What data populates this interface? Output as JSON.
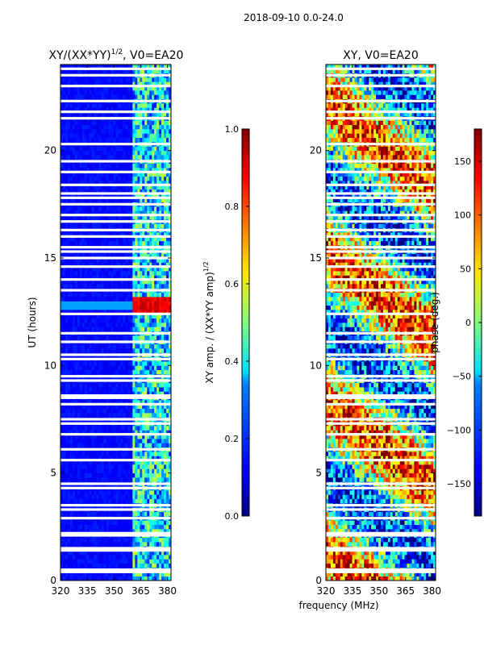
{
  "figure": {
    "suptitle": "2018-09-10 0.0-24.0",
    "xlabel": "frequency (MHz)",
    "background": "#ffffff"
  },
  "chart_data": [
    {
      "type": "heatmap",
      "title_main": "XY/(XX*YY)",
      "title_sup": "1/2",
      "title_tail": ", V0=EA20",
      "ylabel": "UT (hours)",
      "xlim": [
        320,
        382
      ],
      "ylim": [
        0,
        24
      ],
      "xticks": [
        320,
        335,
        350,
        365,
        380
      ],
      "yticks": [
        0,
        5,
        10,
        15,
        20
      ],
      "colorbar": {
        "label_main": "XY amp. / (XX*YY amp)",
        "label_sup": "1/2",
        "range": [
          0.0,
          1.0
        ],
        "ticks": [
          "0.0",
          "0.2",
          "0.4",
          "0.6",
          "0.8",
          "1.0"
        ],
        "colormap": "jet"
      },
      "description_values": {
        "background_level": 0.1,
        "band_start_mhz": 360,
        "band_level": 0.45,
        "peak_hours": [
          12.3,
          13.1
        ],
        "peak_level": 0.85
      },
      "gap_hours": [
        0.4,
        0.5,
        1.4,
        1.5,
        2.1,
        2.2,
        2.9,
        3.3,
        3.5,
        4.3,
        4.5,
        5.6,
        6.1,
        6.8,
        7.3,
        7.5,
        8.2,
        8.5,
        8.6,
        9.3,
        9.5,
        10.3,
        10.5,
        11.1,
        11.5,
        12.4,
        13.5,
        14.0,
        14.6,
        15.0,
        15.3,
        15.5,
        16.0,
        16.3,
        16.7,
        17.0,
        17.5,
        17.8,
        18.0,
        18.4,
        19.0,
        19.5,
        20.3,
        21.5,
        21.8,
        22.3,
        23.0,
        23.5,
        23.8
      ]
    },
    {
      "type": "heatmap",
      "title": "XY, V0=EA20",
      "ylabel": "",
      "xlim": [
        320,
        382
      ],
      "ylim": [
        0,
        24
      ],
      "xticks": [
        320,
        335,
        350,
        365,
        380
      ],
      "yticks": [
        0,
        5,
        10,
        15,
        20
      ],
      "colorbar": {
        "label": "phase (deg.)",
        "range": [
          -180,
          180
        ],
        "ticks": [
          "−150",
          "−100",
          "−50",
          "0",
          "50",
          "100",
          "150"
        ],
        "tick_values": [
          -150,
          -100,
          -50,
          0,
          50,
          100,
          150
        ],
        "colormap": "jet"
      },
      "gap_hours": [
        0.4,
        0.5,
        1.4,
        1.5,
        2.1,
        2.2,
        2.9,
        3.3,
        3.5,
        4.3,
        4.5,
        5.6,
        6.1,
        6.8,
        7.3,
        7.5,
        8.2,
        8.5,
        8.6,
        9.3,
        9.5,
        10.3,
        10.5,
        11.1,
        11.5,
        12.4,
        13.5,
        14.0,
        14.6,
        15.0,
        15.3,
        15.5,
        16.0,
        16.3,
        16.7,
        17.0,
        17.5,
        17.8,
        18.0,
        18.4,
        19.0,
        19.5,
        20.3,
        21.5,
        21.8,
        22.3,
        23.0,
        23.5,
        23.8
      ]
    }
  ]
}
